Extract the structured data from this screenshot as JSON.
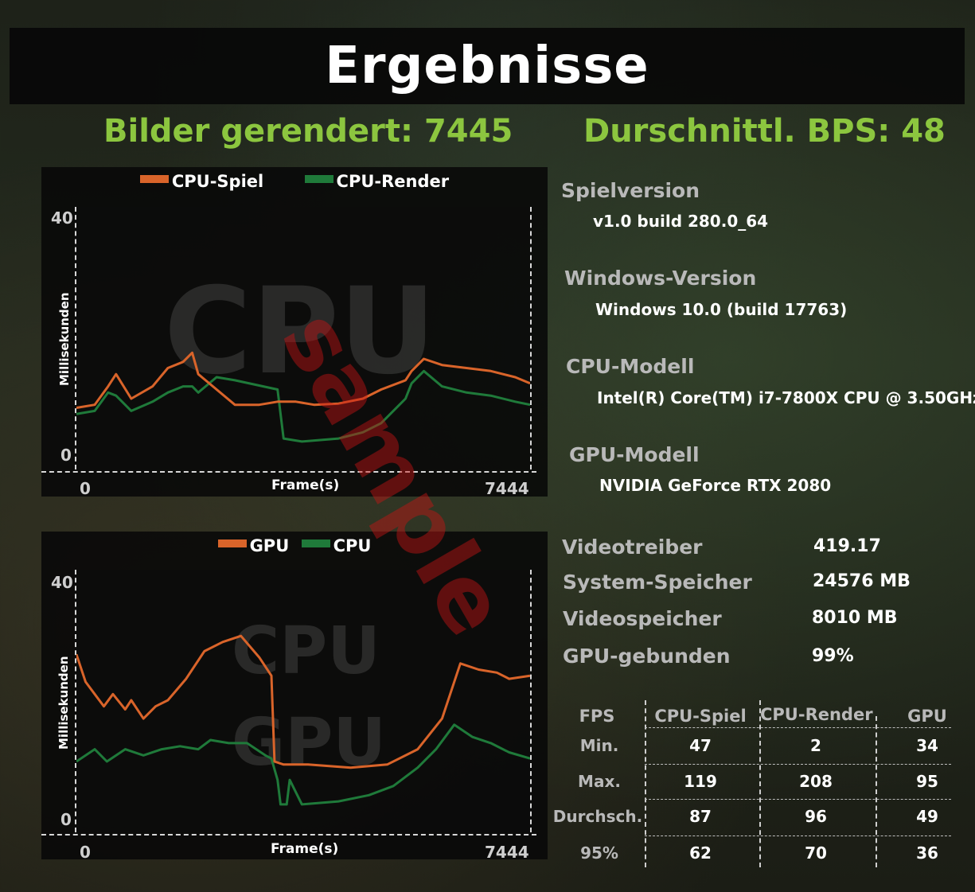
{
  "title": "Ergebnisse",
  "frames_rendered": "Bilder gerendert: 7445",
  "avg_bps": "Durschnittl. BPS: 48",
  "colors": {
    "orange": "#d9642a",
    "green": "#1f7a3a",
    "accent": "#8cc63f"
  },
  "stamp_text": "sample",
  "charts": [
    {
      "legend": [
        {
          "name": "CPU-Spiel",
          "color": "#d9642a"
        },
        {
          "name": "CPU-Render",
          "color": "#1f7a3a"
        }
      ],
      "watermark": [
        "CPU"
      ],
      "y_top": "40",
      "y_bottom": "0",
      "x_left": "0",
      "x_right": "7444",
      "xlabel": "Frame(s)",
      "ylabel": "Millisekunden"
    },
    {
      "legend": [
        {
          "name": "GPU",
          "color": "#d9642a"
        },
        {
          "name": "CPU",
          "color": "#1f7a3a"
        }
      ],
      "watermark": [
        "CPU",
        "GPU"
      ],
      "y_top": "40",
      "y_bottom": "0",
      "x_left": "0",
      "x_right": "7444",
      "xlabel": "Frame(s)",
      "ylabel": "Millisekunden"
    }
  ],
  "chart_data": [
    {
      "type": "line",
      "x_range": [
        0,
        7444
      ],
      "ylim": [
        0,
        40
      ],
      "series": [
        {
          "name": "CPU-Spiel",
          "x": [
            0,
            300,
            520,
            650,
            900,
            1250,
            1500,
            1750,
            1900,
            2000,
            2600,
            3000,
            3300,
            3600,
            3900,
            4300,
            4700,
            5000,
            5400,
            5500,
            5700,
            6000,
            6400,
            6800,
            7200,
            7444
          ],
          "y": [
            8.5,
            9,
            12,
            14,
            10,
            12,
            15,
            16,
            17.5,
            14,
            9,
            9,
            9.5,
            9.5,
            9,
            9.2,
            10,
            11.5,
            13,
            14.5,
            16.5,
            15.5,
            15,
            14.5,
            13.5,
            12.5
          ]
        },
        {
          "name": "CPU-Render",
          "x": [
            0,
            300,
            520,
            650,
            900,
            1250,
            1500,
            1750,
            1900,
            2000,
            2300,
            2600,
            3300,
            3400,
            3700,
            4300,
            4700,
            5000,
            5400,
            5500,
            5700,
            6000,
            6400,
            6800,
            7200,
            7444
          ],
          "y": [
            7.5,
            8,
            11,
            10.5,
            8,
            9.5,
            11,
            12,
            12,
            11,
            13.5,
            13,
            11.5,
            3.5,
            3,
            3.5,
            4.5,
            6,
            10,
            12.5,
            14.5,
            12,
            11,
            10.5,
            9.5,
            9
          ]
        }
      ]
    },
    {
      "type": "line",
      "x_range": [
        0,
        7444
      ],
      "ylim": [
        0,
        40
      ],
      "series": [
        {
          "name": "GPU",
          "x": [
            0,
            150,
            300,
            450,
            600,
            800,
            900,
            1100,
            1300,
            1500,
            1800,
            2100,
            2400,
            2700,
            3000,
            3200,
            3250,
            3400,
            3800,
            4500,
            5100,
            5600,
            6000,
            6300,
            6600,
            6900,
            7100,
            7444
          ],
          "y": [
            27.5,
            23,
            21,
            19,
            21,
            18.5,
            20,
            17,
            19,
            20,
            23.5,
            28,
            29.5,
            30.5,
            27,
            24,
            10,
            9.5,
            9.5,
            9,
            9.5,
            12,
            17,
            26,
            25,
            24.5,
            23.5,
            24
          ]
        },
        {
          "name": "CPU",
          "x": [
            0,
            300,
            500,
            800,
            1100,
            1400,
            1700,
            2000,
            2200,
            2500,
            2800,
            3100,
            3200,
            3300,
            3350,
            3450,
            3500,
            3700,
            4300,
            4800,
            5200,
            5600,
            5900,
            6200,
            6500,
            6800,
            7100,
            7444
          ],
          "y": [
            10,
            12,
            10,
            12,
            11,
            12,
            12.5,
            12,
            13.5,
            13,
            13,
            11,
            10.5,
            7,
            3,
            3,
            7,
            3,
            3.5,
            4.5,
            6,
            9,
            12,
            16,
            14,
            13,
            11.5,
            10.5
          ]
        }
      ]
    }
  ],
  "info": [
    {
      "label": "Spielversion",
      "value": "v1.0 build 280.0_64"
    },
    {
      "label": "Windows-Version",
      "value": "Windows 10.0 (build 17763)"
    },
    {
      "label": "CPU-Modell",
      "value": "Intel(R) Core(TM) i7-7800X CPU @ 3.50GHz"
    },
    {
      "label": "GPU-Modell",
      "value": "NVIDIA GeForce RTX 2080"
    }
  ],
  "stats": [
    {
      "label": "Videotreiber",
      "value": "419.17"
    },
    {
      "label": "System-Speicher",
      "value": "24576 MB"
    },
    {
      "label": "Videospeicher",
      "value": "8010 MB"
    },
    {
      "label": "GPU-gebunden",
      "value": "99%"
    }
  ],
  "fps_table": {
    "headers": [
      "FPS",
      "CPU-Spiel",
      "CPU-Render",
      "GPU"
    ],
    "rows": [
      {
        "label": "Min.",
        "values": [
          "47",
          "2",
          "34"
        ]
      },
      {
        "label": "Max.",
        "values": [
          "119",
          "208",
          "95"
        ]
      },
      {
        "label": "Durchsch.",
        "values": [
          "87",
          "96",
          "49"
        ]
      },
      {
        "label": "95%",
        "values": [
          "62",
          "70",
          "36"
        ]
      }
    ]
  }
}
